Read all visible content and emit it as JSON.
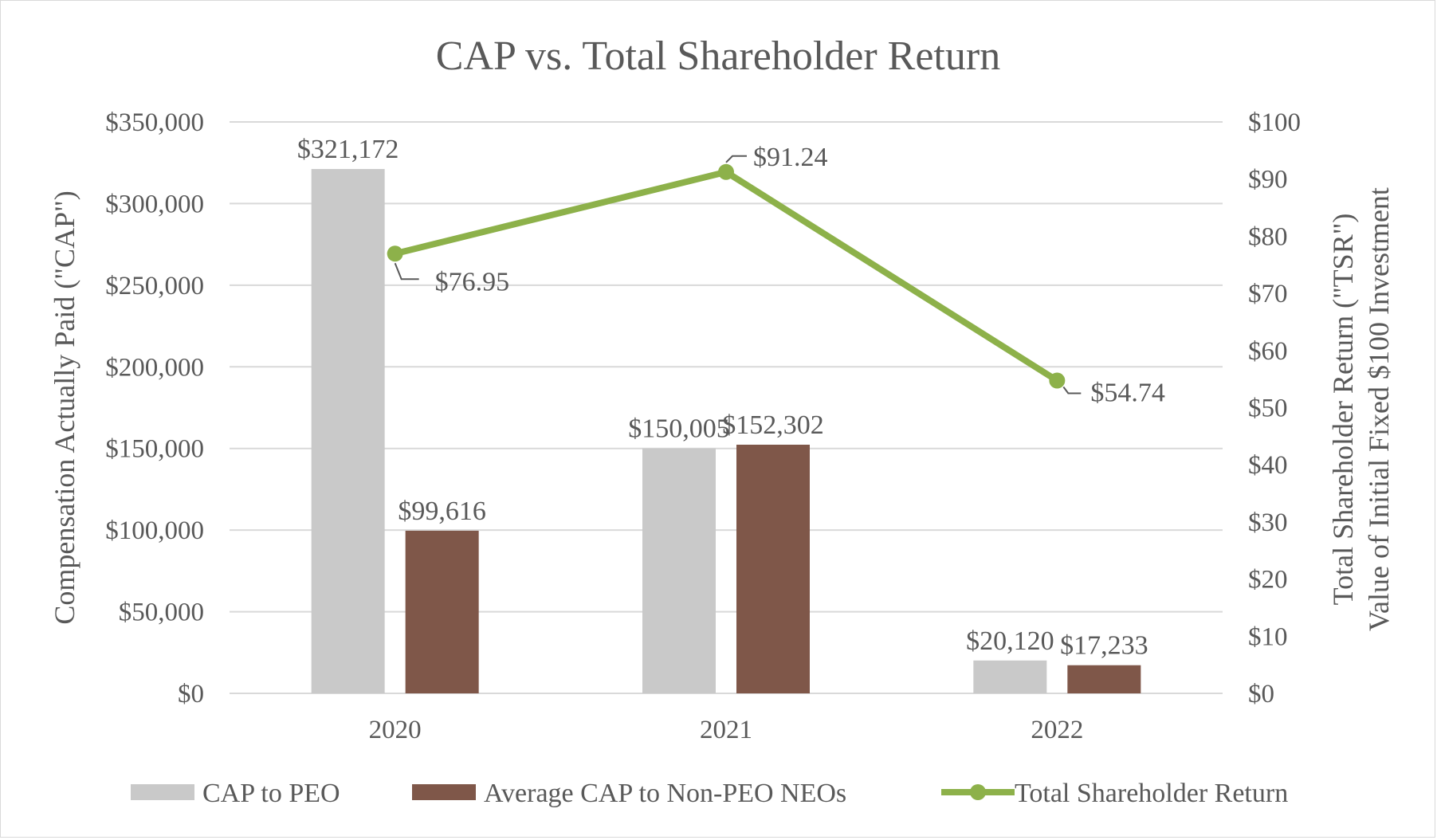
{
  "chart_data": {
    "type": "bar",
    "title": "CAP vs. Total Shareholder Return",
    "categories": [
      "2020",
      "2021",
      "2022"
    ],
    "series": [
      {
        "name": "CAP to PEO",
        "kind": "bar",
        "axis": "left",
        "color": "#c9c9c9",
        "values": [
          321172,
          150005,
          20120
        ],
        "labels": [
          "$321,172",
          "$150,005",
          "$20,120"
        ]
      },
      {
        "name": "Average CAP to Non-PEO NEOs",
        "kind": "bar",
        "axis": "left",
        "color": "#7f5749",
        "values": [
          99616,
          152302,
          17233
        ],
        "labels": [
          "$99,616",
          "$152,302",
          "$17,233"
        ]
      },
      {
        "name": "Total Shareholder Return",
        "kind": "line",
        "axis": "right",
        "color": "#8db14a",
        "values": [
          76.95,
          91.24,
          54.74
        ],
        "labels": [
          "$76.95",
          "$91.24",
          "$54.74"
        ]
      }
    ],
    "y_left": {
      "label": "Compensation Actually Paid (\"CAP\")",
      "ylim": [
        0,
        350000
      ],
      "ticks": [
        0,
        50000,
        100000,
        150000,
        200000,
        250000,
        300000,
        350000
      ],
      "tick_labels": [
        "$0",
        "$50,000",
        "$100,000",
        "$150,000",
        "$200,000",
        "$250,000",
        "$300,000",
        "$350,000"
      ]
    },
    "y_right": {
      "label_line1": "Total Shareholder Return (\"TSR\")",
      "label_line2": "Value of Initial Fixed $100 Investment",
      "ylim": [
        0,
        100
      ],
      "ticks": [
        0,
        10,
        20,
        30,
        40,
        50,
        60,
        70,
        80,
        90,
        100
      ],
      "tick_labels": [
        "$0",
        "$10",
        "$20",
        "$30",
        "$40",
        "$50",
        "$60",
        "$70",
        "$80",
        "$90",
        "$100"
      ]
    },
    "grid": true,
    "legend_position": "bottom",
    "legend": [
      "CAP to PEO",
      "Average CAP to Non-PEO NEOs",
      "Total Shareholder Return"
    ]
  }
}
